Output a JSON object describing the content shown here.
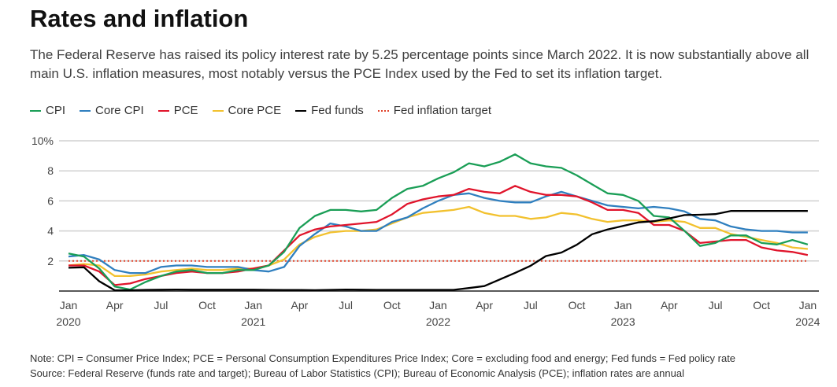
{
  "title": "Rates and inflation",
  "subtitle": "The Federal Reserve has raised its policy interest rate by 5.25 percentage points since March 2022. It is now substantially above all main U.S. inflation measures, most notably versus the PCE Index used by the Fed to set its inflation target.",
  "note": "Note: CPI = Consumer Price Index; PCE = Personal Consumption Expenditures Price Index; Core = excluding food and energy; Fed funds = Fed policy rate",
  "source": "Source: Federal Reserve (funds rate and target); Bureau of Labor Statistics (CPI); Bureau of Economic Analysis (PCE); inflation rates are annual",
  "chart_data": {
    "type": "line",
    "x_start": "2020-01",
    "x_end": "2024-01",
    "frequency": "monthly",
    "ylim": [
      0,
      10
    ],
    "y_ticks": [
      {
        "v": 2,
        "label": "2"
      },
      {
        "v": 4,
        "label": "4"
      },
      {
        "v": 6,
        "label": "6"
      },
      {
        "v": 8,
        "label": "8"
      },
      {
        "v": 10,
        "label": "10%"
      }
    ],
    "x_ticks": [
      {
        "m": 0,
        "label": "Jan",
        "year": "2020"
      },
      {
        "m": 3,
        "label": "Apr"
      },
      {
        "m": 6,
        "label": "Jul"
      },
      {
        "m": 9,
        "label": "Oct"
      },
      {
        "m": 12,
        "label": "Jan",
        "year": "2021"
      },
      {
        "m": 15,
        "label": "Apr"
      },
      {
        "m": 18,
        "label": "Jul"
      },
      {
        "m": 21,
        "label": "Oct"
      },
      {
        "m": 24,
        "label": "Jan",
        "year": "2022"
      },
      {
        "m": 27,
        "label": "Apr"
      },
      {
        "m": 30,
        "label": "Jul"
      },
      {
        "m": 33,
        "label": "Oct"
      },
      {
        "m": 36,
        "label": "Jan",
        "year": "2023"
      },
      {
        "m": 39,
        "label": "Apr"
      },
      {
        "m": 42,
        "label": "Jul"
      },
      {
        "m": 45,
        "label": "Oct"
      },
      {
        "m": 48,
        "label": "Jan",
        "year": "2024"
      }
    ],
    "grid": true,
    "legend_position": "top-left",
    "series": [
      {
        "name": "CPI",
        "color": "#1a9e56",
        "values": [
          2.5,
          2.3,
          1.5,
          0.3,
          0.1,
          0.6,
          1.0,
          1.3,
          1.4,
          1.2,
          1.2,
          1.4,
          1.4,
          1.7,
          2.6,
          4.2,
          5.0,
          5.4,
          5.4,
          5.3,
          5.4,
          6.2,
          6.8,
          7.0,
          7.5,
          7.9,
          8.5,
          8.3,
          8.6,
          9.1,
          8.5,
          8.3,
          8.2,
          7.7,
          7.1,
          6.5,
          6.4,
          6.0,
          5.0,
          4.9,
          4.0,
          3.0,
          3.2,
          3.7,
          3.7,
          3.2,
          3.1,
          3.4,
          3.1
        ]
      },
      {
        "name": "Core CPI",
        "color": "#2f7fbf",
        "values": [
          2.3,
          2.4,
          2.1,
          1.4,
          1.2,
          1.2,
          1.6,
          1.7,
          1.7,
          1.6,
          1.6,
          1.6,
          1.4,
          1.3,
          1.6,
          3.0,
          3.8,
          4.5,
          4.3,
          4.0,
          4.0,
          4.6,
          4.9,
          5.5,
          6.0,
          6.4,
          6.5,
          6.2,
          6.0,
          5.9,
          5.9,
          6.3,
          6.6,
          6.3,
          6.0,
          5.7,
          5.6,
          5.5,
          5.6,
          5.5,
          5.3,
          4.8,
          4.7,
          4.3,
          4.1,
          4.0,
          4.0,
          3.9,
          3.9
        ]
      },
      {
        "name": "PCE",
        "color": "#e0142b",
        "values": [
          1.7,
          1.7,
          1.3,
          0.4,
          0.5,
          0.8,
          1.0,
          1.2,
          1.3,
          1.2,
          1.2,
          1.3,
          1.5,
          1.7,
          2.7,
          3.7,
          4.1,
          4.3,
          4.4,
          4.5,
          4.6,
          5.1,
          5.8,
          6.1,
          6.3,
          6.4,
          6.8,
          6.6,
          6.5,
          7.0,
          6.6,
          6.4,
          6.4,
          6.3,
          5.9,
          5.4,
          5.4,
          5.2,
          4.4,
          4.4,
          4.0,
          3.2,
          3.3,
          3.4,
          3.4,
          2.9,
          2.7,
          2.6,
          2.4
        ]
      },
      {
        "name": "Core PCE",
        "color": "#f2c12e",
        "values": [
          1.7,
          1.8,
          1.7,
          1.0,
          1.0,
          1.1,
          1.3,
          1.4,
          1.5,
          1.4,
          1.4,
          1.5,
          1.5,
          1.7,
          2.1,
          3.1,
          3.6,
          3.9,
          4.0,
          4.0,
          4.1,
          4.5,
          4.9,
          5.2,
          5.3,
          5.4,
          5.6,
          5.2,
          5.0,
          5.0,
          4.8,
          4.9,
          5.2,
          5.1,
          4.8,
          4.6,
          4.7,
          4.7,
          4.6,
          4.7,
          4.6,
          4.2,
          4.2,
          3.8,
          3.6,
          3.4,
          3.2,
          2.9,
          2.8
        ]
      },
      {
        "name": "Fed funds",
        "color": "#000000",
        "values": [
          1.55,
          1.58,
          0.65,
          0.05,
          0.05,
          0.08,
          0.09,
          0.1,
          0.09,
          0.09,
          0.09,
          0.09,
          0.09,
          0.08,
          0.07,
          0.07,
          0.06,
          0.08,
          0.1,
          0.09,
          0.08,
          0.08,
          0.08,
          0.08,
          0.08,
          0.08,
          0.2,
          0.33,
          0.77,
          1.21,
          1.68,
          2.33,
          2.56,
          3.08,
          3.78,
          4.1,
          4.33,
          4.57,
          4.65,
          4.83,
          5.06,
          5.08,
          5.12,
          5.33,
          5.33,
          5.33,
          5.33,
          5.33,
          5.33
        ]
      },
      {
        "name": "Fed inflation target",
        "color": "#e0432b",
        "dotted": true,
        "values": [
          2,
          2
        ]
      }
    ]
  }
}
